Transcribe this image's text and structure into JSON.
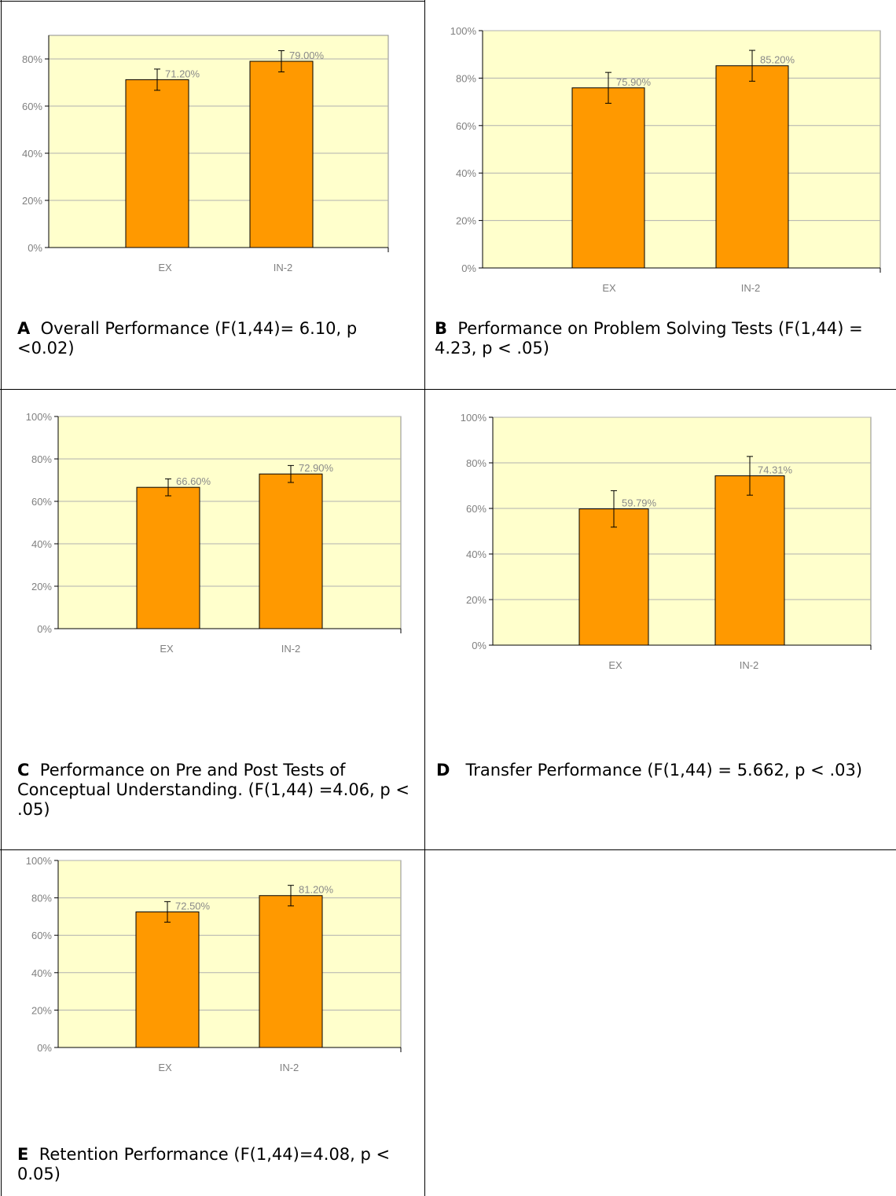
{
  "bar_color": "#FF9900",
  "plot_bg": "#FFFFCC",
  "panels": [
    {
      "letter": "A",
      "caption": "Overall Performance (F(1,44)= 6.10, p <0.02)",
      "chart_data": {
        "type": "bar",
        "categories": [
          "EX",
          "IN-2"
        ],
        "values": [
          71.2,
          79.0
        ],
        "value_labels": [
          "71.20%",
          "79.00%"
        ],
        "errors": [
          4.5,
          4.5
        ],
        "ylim": [
          0,
          90
        ],
        "yticks": [
          "0%",
          "20%",
          "40%",
          "60%",
          "80%"
        ],
        "grid": true
      }
    },
    {
      "letter": "B",
      "caption": "Performance on Problem Solving Tests (F(1,44) = 4.23, p < .05)",
      "chart_data": {
        "type": "bar",
        "categories": [
          "EX",
          "IN-2"
        ],
        "values": [
          75.9,
          85.2
        ],
        "value_labels": [
          "75.90%",
          "85.20%"
        ],
        "errors": [
          6.5,
          6.5
        ],
        "ylim": [
          0,
          100
        ],
        "yticks": [
          "0%",
          "20%",
          "40%",
          "60%",
          "80%",
          "100%"
        ],
        "grid": true
      }
    },
    {
      "letter": "C",
      "caption": "Performance on Pre and Post Tests of Conceptual Understanding. (F(1,44) =4.06, p < .05)",
      "chart_data": {
        "type": "bar",
        "categories": [
          "EX",
          "IN-2"
        ],
        "values": [
          66.6,
          72.9
        ],
        "value_labels": [
          "66.60%",
          "72.90%"
        ],
        "errors": [
          4.0,
          4.0
        ],
        "ylim": [
          0,
          100
        ],
        "yticks": [
          "0%",
          "20%",
          "40%",
          "60%",
          "80%",
          "100%"
        ],
        "grid": true
      }
    },
    {
      "letter": "D",
      "caption": "Transfer Performance (F(1,44) = 5.662,  p < .03)",
      "chart_data": {
        "type": "bar",
        "categories": [
          "EX",
          "IN-2"
        ],
        "values": [
          59.79,
          74.31
        ],
        "value_labels": [
          "59.79%",
          "74.31%"
        ],
        "errors": [
          8.0,
          8.5
        ],
        "ylim": [
          0,
          100
        ],
        "yticks": [
          "0%",
          "20%",
          "40%",
          "60%",
          "80%",
          "100%"
        ],
        "grid": true
      }
    },
    {
      "letter": "E",
      "caption": "Retention Performance (F(1,44)=4.08, p < 0.05)",
      "chart_data": {
        "type": "bar",
        "categories": [
          "EX",
          "IN-2"
        ],
        "values": [
          72.5,
          81.2
        ],
        "value_labels": [
          "72.50%",
          "81.20%"
        ],
        "errors": [
          5.5,
          5.5
        ],
        "ylim": [
          0,
          100
        ],
        "yticks": [
          "0%",
          "20%",
          "40%",
          "60%",
          "80%",
          "100%"
        ],
        "grid": true
      }
    }
  ]
}
